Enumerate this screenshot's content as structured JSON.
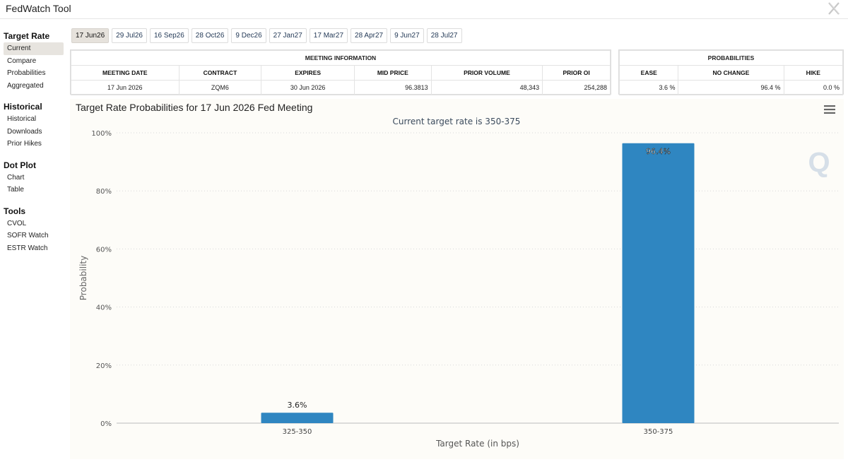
{
  "app": {
    "title": "FedWatch Tool"
  },
  "sidebar": {
    "sections": [
      {
        "title": "Target Rate",
        "items": [
          {
            "label": "Current",
            "active": true
          },
          {
            "label": "Compare",
            "active": false
          },
          {
            "label": "Probabilities",
            "active": false
          },
          {
            "label": "Aggregated",
            "active": false
          }
        ]
      },
      {
        "title": "Historical",
        "items": [
          {
            "label": "Historical",
            "active": false
          },
          {
            "label": "Downloads",
            "active": false
          },
          {
            "label": "Prior Hikes",
            "active": false
          }
        ]
      },
      {
        "title": "Dot Plot",
        "items": [
          {
            "label": "Chart",
            "active": false
          },
          {
            "label": "Table",
            "active": false
          }
        ]
      },
      {
        "title": "Tools",
        "items": [
          {
            "label": "CVOL",
            "active": false
          },
          {
            "label": "SOFR Watch",
            "active": false
          },
          {
            "label": "ESTR Watch",
            "active": false
          }
        ]
      }
    ]
  },
  "tabs": [
    {
      "label": "17 Jun26",
      "active": true
    },
    {
      "label": "29 Jul26",
      "active": false
    },
    {
      "label": "16 Sep26",
      "active": false
    },
    {
      "label": "28 Oct26",
      "active": false
    },
    {
      "label": "9 Dec26",
      "active": false
    },
    {
      "label": "27 Jan27",
      "active": false
    },
    {
      "label": "17 Mar27",
      "active": false
    },
    {
      "label": "28 Apr27",
      "active": false
    },
    {
      "label": "9 Jun27",
      "active": false
    },
    {
      "label": "28 Jul27",
      "active": false
    }
  ],
  "meeting_info": {
    "title": "MEETING INFORMATION",
    "headers": [
      "MEETING DATE",
      "CONTRACT",
      "EXPIRES",
      "MID PRICE",
      "PRIOR VOLUME",
      "PRIOR OI"
    ],
    "row": [
      "17 Jun 2026",
      "ZQM6",
      "30 Jun 2026",
      "96.3813",
      "48,343",
      "254,288"
    ]
  },
  "probabilities": {
    "title": "PROBABILITIES",
    "headers": [
      "EASE",
      "NO CHANGE",
      "HIKE"
    ],
    "row": [
      "3.6 %",
      "96.4 %",
      "0.0 %"
    ]
  },
  "chart_heading": "Target Rate Probabilities for 17 Jun 2026 Fed Meeting",
  "colors": {
    "bar": "#2f86c1",
    "grid": "#d8d8d8"
  },
  "icons": {
    "close": "x-logo-icon",
    "menu": "hamburger-menu-icon",
    "watermark": "q-watermark-icon"
  },
  "chart_data": {
    "type": "bar",
    "title": "Current target rate is 350-375",
    "xlabel": "Target Rate (in bps)",
    "ylabel": "Probability",
    "categories": [
      "325-350",
      "350-375"
    ],
    "values": [
      3.6,
      96.4
    ],
    "data_labels": [
      "3.6%",
      "96.4%"
    ],
    "ylim": [
      0,
      100
    ],
    "yticks": [
      0,
      20,
      40,
      60,
      80,
      100
    ],
    "ytick_labels": [
      "0%",
      "20%",
      "40%",
      "60%",
      "80%",
      "100%"
    ],
    "grid": true,
    "legend": "none"
  }
}
